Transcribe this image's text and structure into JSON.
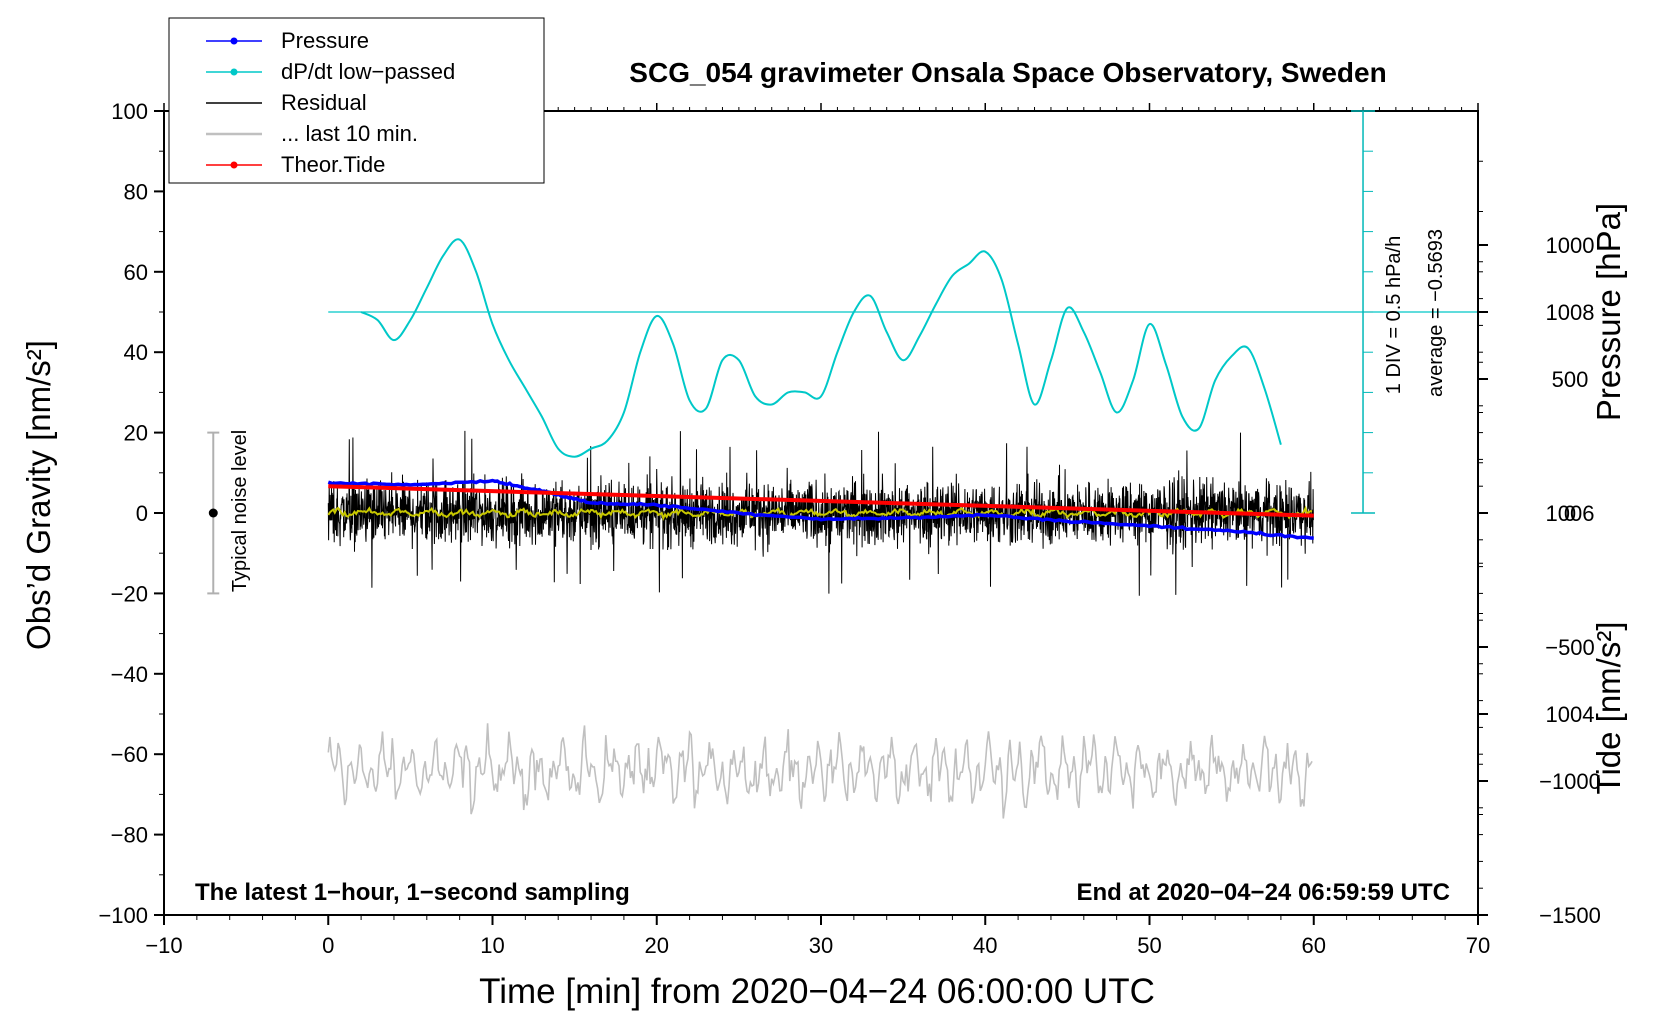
{
  "chart_data": {
    "type": "line",
    "title": "SCG_054 gravimeter Onsala Space Observatory, Sweden",
    "xlabel": "Time [min] from 2020−04−24 06:00:00 UTC",
    "ylabel": "Obs’d Gravity [nm/s²]",
    "ylabel_pressure": "Pressure [hPa]",
    "ylabel_tide": "Tide [nm/s²]",
    "xlim": [
      -10,
      70
    ],
    "ylim": [
      -100,
      100
    ],
    "pressure_lim": [
      1002,
      1010
    ],
    "tide_lim": [
      -1500,
      1500
    ],
    "x_ticks": [
      {
        "value": -10,
        "label": "−10"
      },
      {
        "value": 0,
        "label": "0"
      },
      {
        "value": 10,
        "label": "10"
      },
      {
        "value": 20,
        "label": "20"
      },
      {
        "value": 30,
        "label": "30"
      },
      {
        "value": 40,
        "label": "40"
      },
      {
        "value": 50,
        "label": "50"
      },
      {
        "value": 60,
        "label": "60"
      },
      {
        "value": 70,
        "label": "70"
      }
    ],
    "y_ticks": [
      {
        "value": 100,
        "label": "100"
      },
      {
        "value": 80,
        "label": "80"
      },
      {
        "value": 60,
        "label": "60"
      },
      {
        "value": 40,
        "label": "40"
      },
      {
        "value": 20,
        "label": "20"
      },
      {
        "value": 0,
        "label": "0"
      },
      {
        "value": -20,
        "label": "−20"
      },
      {
        "value": -40,
        "label": "−40"
      },
      {
        "value": -60,
        "label": "−60"
      },
      {
        "value": -80,
        "label": "−80"
      },
      {
        "value": -100,
        "label": "−100"
      }
    ],
    "pressure_ticks": [
      {
        "value": 1008,
        "label": "1008"
      },
      {
        "value": 1006,
        "label": "1006"
      },
      {
        "value": 1004,
        "label": "1004"
      }
    ],
    "tide_ticks": [
      {
        "value": 1000,
        "label": "1000"
      },
      {
        "value": 500,
        "label": "500"
      },
      {
        "value": 0,
        "label": "0"
      },
      {
        "value": -500,
        "label": "−500"
      },
      {
        "value": -1000,
        "label": "−1000"
      },
      {
        "value": -1500,
        "label": "−1500"
      }
    ],
    "legend": [
      {
        "label": "Pressure",
        "color": "#0000ff",
        "marker": true
      },
      {
        "label": "dP/dt low−passed",
        "color": "#00c8c8",
        "marker": true
      },
      {
        "label": "Residual",
        "color": "#000000",
        "marker": false
      },
      {
        "label": "... last 10 min.",
        "color": "#c0c0c0",
        "marker": false
      },
      {
        "label": "Theor.Tide",
        "color": "#ff0000",
        "marker": true
      }
    ],
    "series": [
      {
        "name": "Pressure",
        "color": "#0000ff",
        "axis": "pressure",
        "x": [
          0,
          5,
          10,
          13,
          16,
          20,
          25,
          30,
          35,
          40,
          45,
          50,
          55,
          60
        ],
        "y": [
          1006.3,
          1006.28,
          1006.32,
          1006.22,
          1006.1,
          1006.08,
          1006.0,
          1005.94,
          1005.95,
          1005.98,
          1005.92,
          1005.87,
          1005.82,
          1005.75
        ]
      },
      {
        "name": "dP/dt low-passed",
        "color": "#00c8c8",
        "axis": "gravity",
        "x": [
          2,
          3,
          4,
          5,
          6,
          7,
          8,
          9,
          10,
          11,
          12,
          13,
          14,
          15,
          16,
          17,
          18,
          19,
          20,
          21,
          22,
          23,
          24,
          25,
          26,
          27,
          28,
          29,
          30,
          31,
          32,
          33,
          34,
          35,
          36,
          37,
          38,
          39,
          40,
          41,
          42,
          43,
          44,
          45,
          46,
          47,
          48,
          49,
          50,
          51,
          52,
          53,
          54,
          55,
          56,
          57,
          58
        ],
        "y": [
          50,
          48,
          43,
          48,
          56,
          64,
          68,
          60,
          47,
          38,
          31,
          24,
          16,
          14,
          16,
          18,
          25,
          40,
          49,
          42,
          28,
          26,
          38,
          38,
          29,
          27,
          30,
          30,
          29,
          40,
          50,
          54,
          45,
          38,
          44,
          52,
          59,
          62,
          65,
          58,
          42,
          27,
          38,
          51,
          45,
          35,
          25,
          33,
          47,
          37,
          24,
          21,
          33,
          39,
          41,
          31,
          17
        ]
      },
      {
        "name": "Residual",
        "color": "#000000",
        "axis": "gravity",
        "x_range": [
          0,
          60
        ],
        "amplitude": 9,
        "peak_range": [
          -20,
          23
        ]
      },
      {
        "name": "Residual smoothed",
        "color": "#c8c800",
        "axis": "gravity",
        "x_range": [
          0,
          60
        ],
        "amplitude": 1
      },
      {
        "name": "... last 10 min.",
        "color": "#c0c0c0",
        "axis": "gravity",
        "x_range": [
          0,
          60
        ],
        "center": -64,
        "amplitude": 6
      },
      {
        "name": "Theor.Tide",
        "color": "#ff0000",
        "axis": "tide",
        "x": [
          0,
          60
        ],
        "y": [
          100,
          -10
        ]
      }
    ],
    "annotations": {
      "noise_label": "Typical noise level",
      "noise_range": [
        -20,
        20
      ],
      "div_label": "1 DIV = 0.5 hPa/h",
      "average_label": "average = −0.5693",
      "bottom_left": "The latest 1−hour, 1−second sampling",
      "bottom_right": "End at 2020−04−24 06:59:59 UTC"
    }
  }
}
